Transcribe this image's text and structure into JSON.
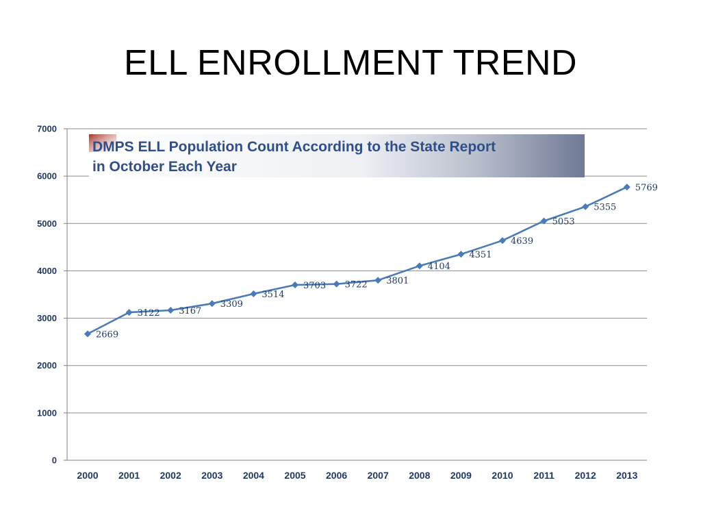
{
  "slide": {
    "title": "ELL ENROLLMENT TREND"
  },
  "chart_data": {
    "type": "line",
    "title": "DMPS ELL Population Count According to the State Report in October Each Year",
    "title_lines": [
      "DMPS ELL Population Count According to the State Report",
      "in October Each Year"
    ],
    "xlabel": "",
    "ylabel": "",
    "categories": [
      "2000",
      "2001",
      "2002",
      "2003",
      "2004",
      "2005",
      "2006",
      "2007",
      "2008",
      "2009",
      "2010",
      "2011",
      "2012",
      "2013"
    ],
    "series": [
      {
        "values": [
          2669,
          3122,
          3167,
          3309,
          3514,
          3703,
          3722,
          3801,
          4104,
          4351,
          4639,
          5053,
          5355,
          5769
        ]
      }
    ],
    "ylim": [
      0,
      7000
    ],
    "yticks": [
      0,
      1000,
      2000,
      3000,
      4000,
      5000,
      6000,
      7000
    ],
    "grid": true,
    "legend": "none",
    "data_labels": true,
    "marker": "diamond",
    "colors": {
      "line": "#4a7ab8",
      "marker": "#4a7ab8",
      "tick_text": "#1f3864",
      "grid": "#8c8c8c",
      "banner_text": "#2f4f8a"
    }
  }
}
